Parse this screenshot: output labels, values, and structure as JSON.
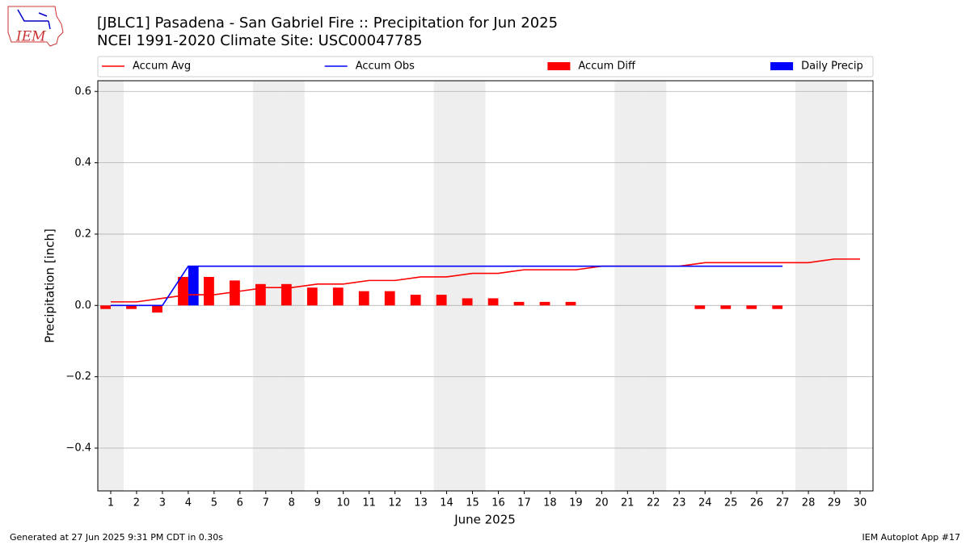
{
  "logo": "IEM",
  "footer_left": "Generated at 27 Jun 2025 9:31 PM CDT in 0.30s",
  "footer_right": "IEM Autoplot App #17",
  "chart_data": {
    "type": "combo",
    "title": "[JBLC1] Pasadena - San Gabriel Fire :: Precipitation for Jun 2025",
    "subtitle": "NCEI 1991-2020 Climate Site: USC00047785",
    "x_label": "June 2025",
    "y_label": "Precipitation [inch]",
    "x": [
      1,
      2,
      3,
      4,
      5,
      6,
      7,
      8,
      9,
      10,
      11,
      12,
      13,
      14,
      15,
      16,
      17,
      18,
      19,
      20,
      21,
      22,
      23,
      24,
      25,
      26,
      27,
      28,
      29,
      30
    ],
    "xlim": [
      0.5,
      30.5
    ],
    "xticks": [
      1,
      2,
      3,
      4,
      5,
      6,
      7,
      8,
      9,
      10,
      11,
      12,
      13,
      14,
      15,
      16,
      17,
      18,
      19,
      20,
      21,
      22,
      23,
      24,
      25,
      26,
      27,
      28,
      29,
      30
    ],
    "ylim": [
      -0.52,
      0.63
    ],
    "yticks": [
      {
        "value": -0.4,
        "label": "−0.4"
      },
      {
        "value": -0.2,
        "label": "−0.2"
      },
      {
        "value": 0,
        "label": "0.0"
      },
      0.2,
      0.4,
      0.6
    ],
    "grid": true,
    "shaded_days": [
      1,
      7,
      8,
      14,
      15,
      21,
      22,
      28,
      29
    ],
    "shade_color": "#eeeeee",
    "series": [
      {
        "name": "Accum Avg",
        "type": "line",
        "color": "#ff0000",
        "values": [
          0.01,
          0.01,
          0.02,
          0.03,
          0.03,
          0.04,
          0.05,
          0.05,
          0.06,
          0.06,
          0.07,
          0.07,
          0.08,
          0.08,
          0.09,
          0.09,
          0.1,
          0.1,
          0.1,
          0.11,
          0.11,
          0.11,
          0.11,
          0.12,
          0.12,
          0.12,
          0.12,
          0.12,
          0.13,
          0.13
        ]
      },
      {
        "name": "Accum Obs",
        "type": "line",
        "color": "#0000ff",
        "values": [
          0,
          0,
          0,
          0.11,
          0.11,
          0.11,
          0.11,
          0.11,
          0.11,
          0.11,
          0.11,
          0.11,
          0.11,
          0.11,
          0.11,
          0.11,
          0.11,
          0.11,
          0.11,
          0.11,
          0.11,
          0.11,
          0.11,
          0.11,
          0.11,
          0.11,
          0.11,
          null,
          null,
          null
        ]
      },
      {
        "name": "Accum Diff",
        "type": "bar",
        "color": "#ff0000",
        "values": [
          -0.01,
          -0.01,
          -0.02,
          0.08,
          0.08,
          0.07,
          0.06,
          0.06,
          0.05,
          0.05,
          0.04,
          0.04,
          0.03,
          0.03,
          0.02,
          0.02,
          0.01,
          0.01,
          0.01,
          0,
          0,
          0,
          0,
          -0.01,
          -0.01,
          -0.01,
          -0.01,
          null,
          null,
          null
        ]
      },
      {
        "name": "Daily Precip",
        "type": "bar",
        "color": "#0000ff",
        "values": [
          0,
          0,
          0,
          0.11,
          0,
          0,
          0,
          0,
          0,
          0,
          0,
          0,
          0,
          0,
          0,
          0,
          0,
          0,
          0,
          0,
          0,
          0,
          0,
          0,
          0,
          0,
          0,
          null,
          null,
          null
        ]
      }
    ]
  }
}
